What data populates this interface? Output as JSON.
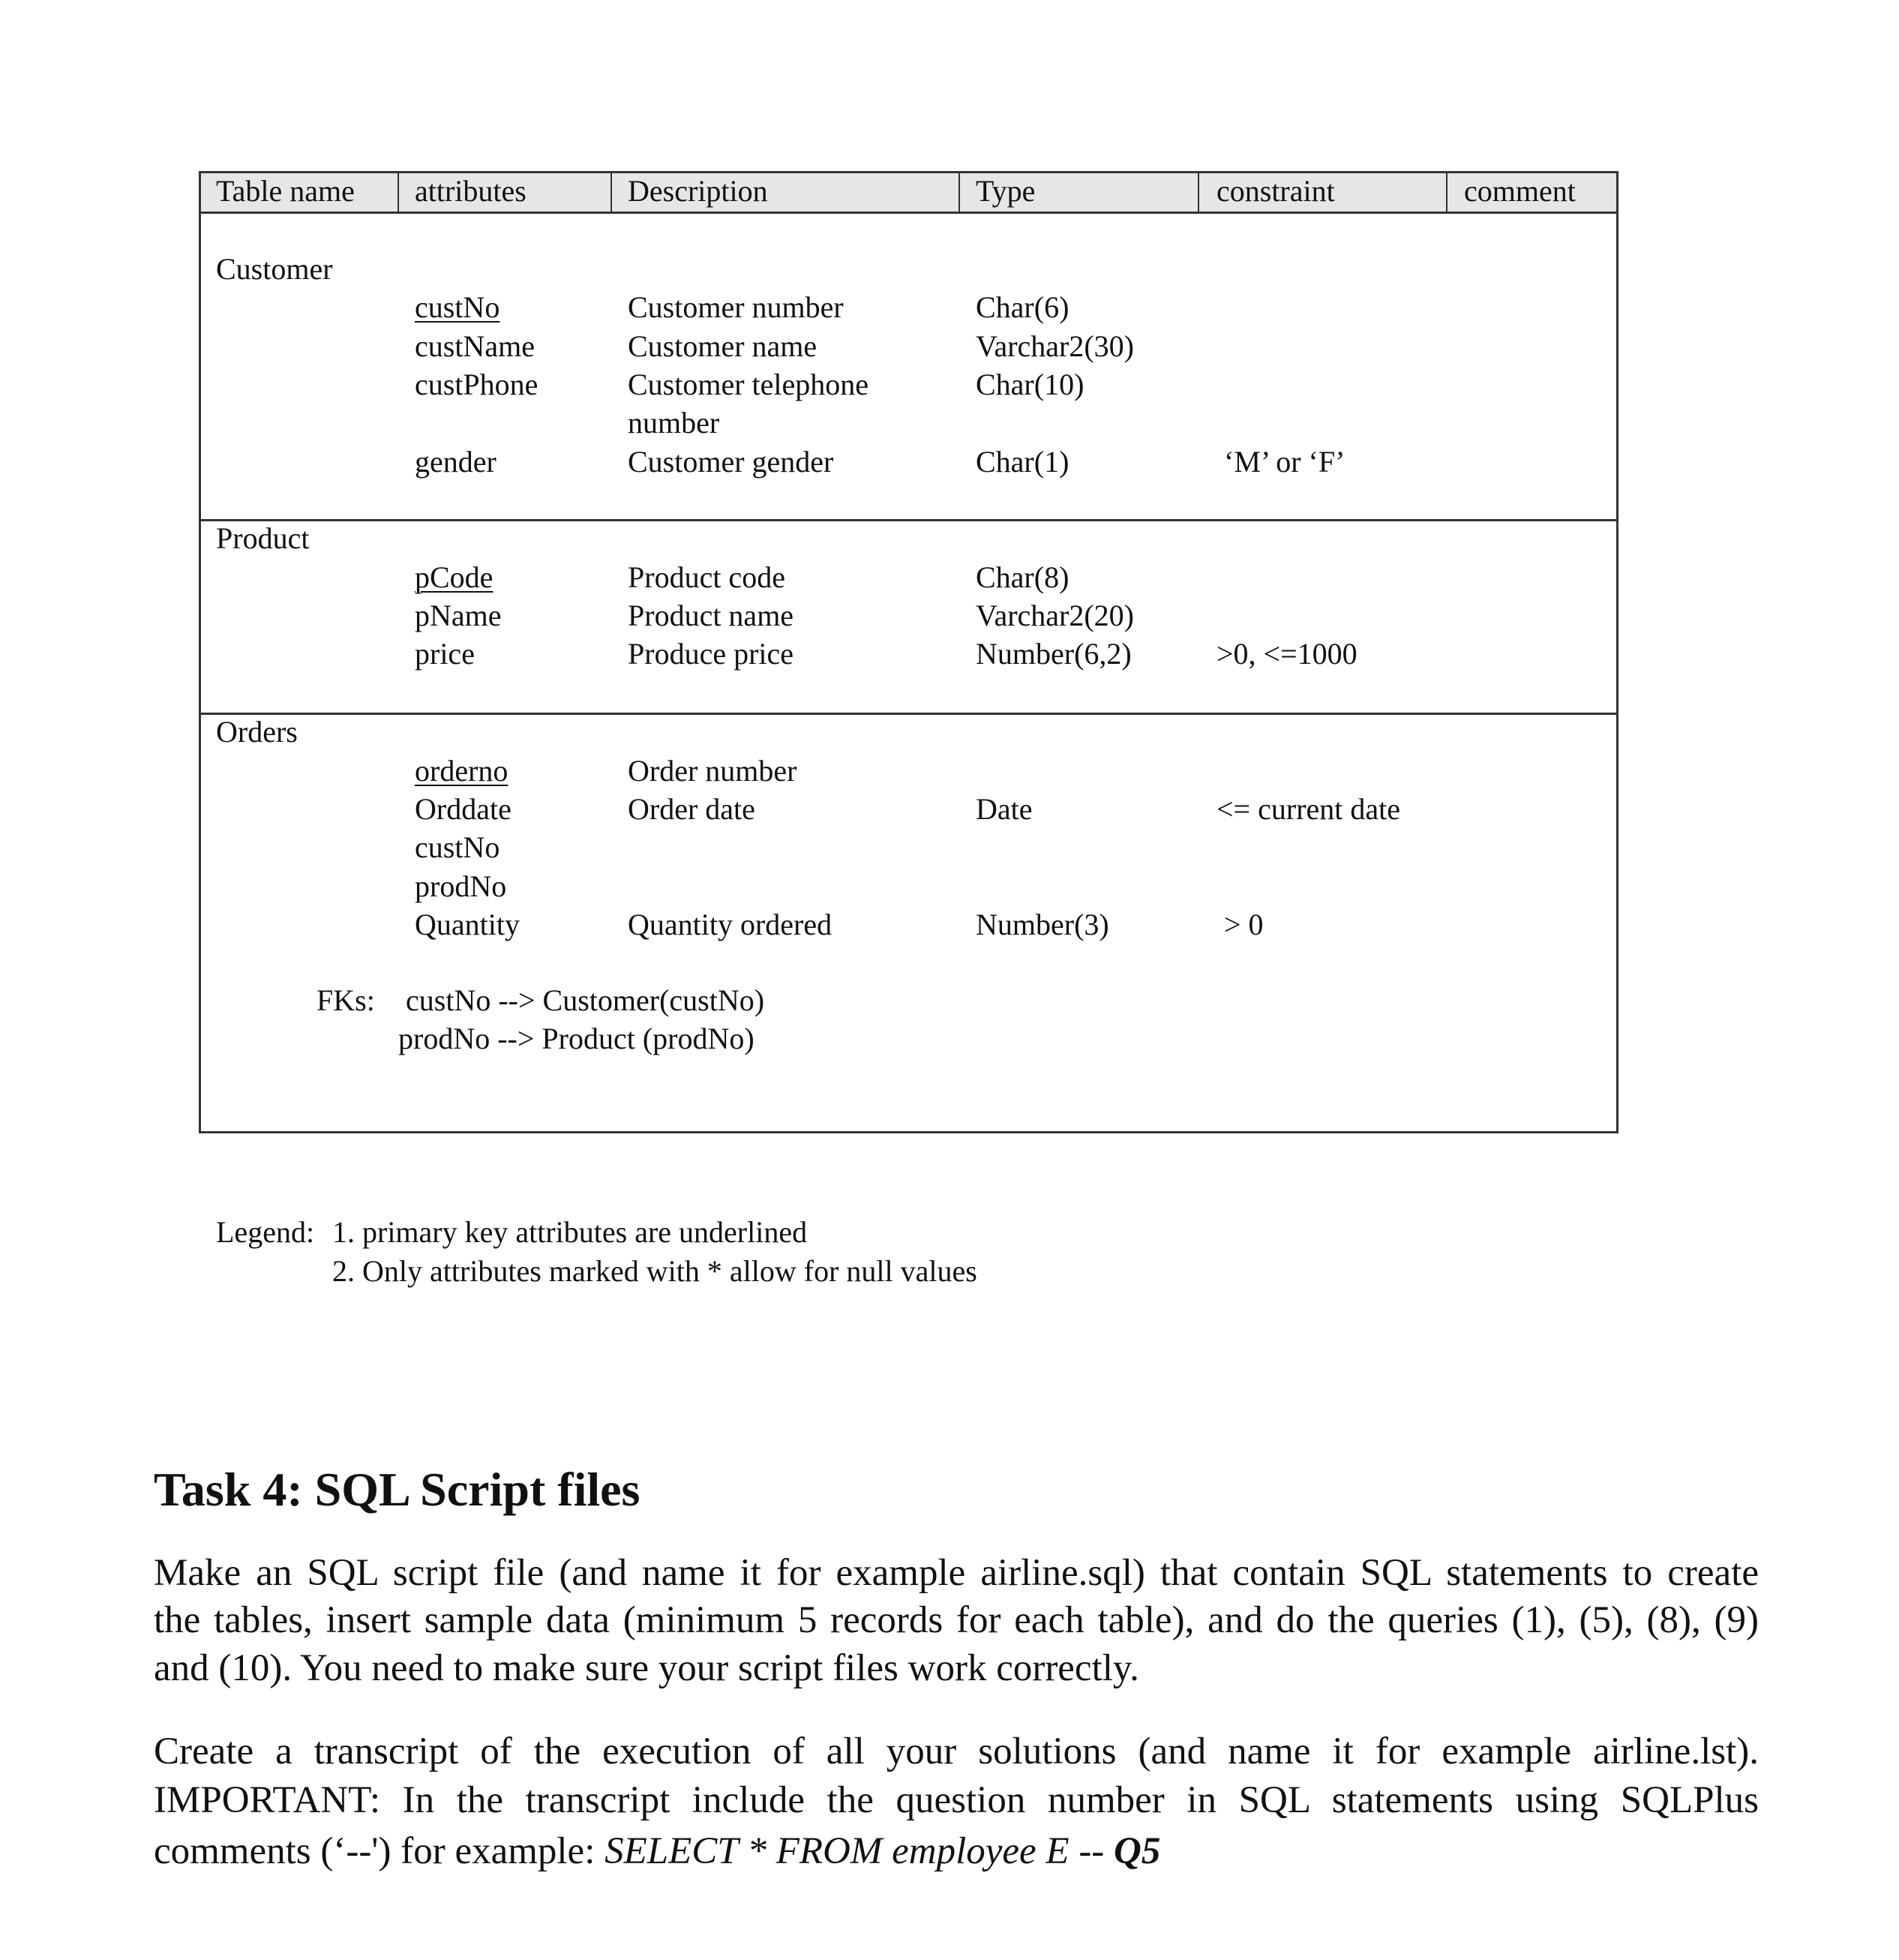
{
  "table": {
    "headers": [
      "Table name",
      "attributes",
      "Description",
      "Type",
      "constraint",
      "comment"
    ],
    "customer": {
      "name": "Customer",
      "rows": [
        {
          "attr": "custNo",
          "desc": "Customer number",
          "type": "Char(6)",
          "constraint": "",
          "pk": true
        },
        {
          "attr": "custName",
          "desc": "Customer name",
          "type": "Varchar2(30)",
          "constraint": ""
        },
        {
          "attr": "custPhone",
          "desc": "Customer telephone",
          "desc2": "number",
          "type": "Char(10)",
          "constraint": ""
        },
        {
          "attr": "gender",
          "desc": "Customer gender",
          "type": "Char(1)",
          "constraint": "‘M’ or ‘F’"
        }
      ]
    },
    "product": {
      "name": "Product",
      "rows": [
        {
          "attr": "pCode",
          "desc": "Product code",
          "type": "Char(8)",
          "constraint": "",
          "pk": true
        },
        {
          "attr": "pName",
          "desc": "Product name",
          "type": "Varchar2(20)",
          "constraint": ""
        },
        {
          "attr": "price",
          "desc": "Produce price",
          "type": "Number(6,2)",
          "constraint": ">0, <=1000"
        }
      ]
    },
    "orders": {
      "name": "Orders",
      "rows": [
        {
          "attr": "orderno",
          "desc": "Order number",
          "type": "",
          "constraint": "",
          "pk": true
        },
        {
          "attr": "Orddate",
          "desc": "Order date",
          "type": "Date",
          "constraint": "<= current date"
        },
        {
          "attr": "custNo",
          "desc": "",
          "type": "",
          "constraint": ""
        },
        {
          "attr": "prodNo",
          "desc": "",
          "type": "",
          "constraint": ""
        },
        {
          "attr": "Quantity",
          "desc": "Quantity ordered",
          "type": "Number(3)",
          "constraint": "> 0"
        }
      ],
      "fk_label": "FKs:",
      "fks": [
        "custNo --> Customer(custNo)",
        "prodNo --> Product (prodNo)"
      ]
    }
  },
  "legend": {
    "label": "Legend:",
    "items": [
      "1. primary key attributes are underlined",
      "2. Only attributes marked with * allow for null values"
    ]
  },
  "task": {
    "heading": "Task 4: SQL Script files",
    "para1_lines": [
      "Make an SQL script file (and name it for example airline.sql) that contain SQL statements to create",
      "the tables, insert sample data (minimum 5 records for each table), and do the queries (1), (5), (8), (9)",
      "and (10). You need to make sure your script files work correctly."
    ],
    "para2_lines": [
      "Create a transcript of the execution of all your solutions (and name it for example airline.lst).",
      "IMPORTANT: In the transcript include the question number in SQL statements using SQLPlus"
    ],
    "para2_last_prefix": "comments (‘--') for example: ",
    "para2_last_code": "SELECT * FROM employee E -- ",
    "para2_last_q": "Q5"
  }
}
